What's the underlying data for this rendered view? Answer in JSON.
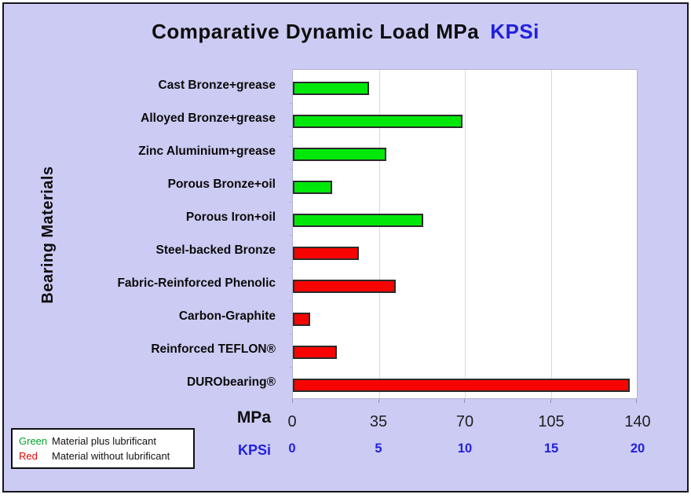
{
  "title": {
    "main": "Comparative Dynamic Load MPa",
    "secondary": "KPSi"
  },
  "ylabel": "Bearing Materials",
  "axis": {
    "primary_label": "MPa",
    "secondary_label": "KPSi"
  },
  "legend": {
    "items": [
      {
        "keyword": "Green",
        "keyword_color": "#00a32a",
        "text": "Material plus lubrificant"
      },
      {
        "keyword": "Red",
        "keyword_color": "#e80000",
        "text": "Material without lubrificant"
      }
    ]
  },
  "colors": {
    "background": "#cccbf3",
    "green_bar": "#00e80a",
    "red_bar": "#f70400",
    "bar_border": "#2b2b2b",
    "blue_accent": "#2121df",
    "gridline": "#d8d8d8"
  },
  "chart_data": {
    "type": "bar",
    "orientation": "horizontal",
    "title": "Comparative Dynamic Load MPa  KPSi",
    "xlabel": "MPa (top scale) / KPSi (bottom scale)",
    "ylabel": "Bearing Materials",
    "xlim": [
      0,
      140
    ],
    "grid": true,
    "categories": [
      "Cast Bronze+grease",
      "Alloyed Bronze+grease",
      "Zinc Aluminium+grease",
      "Porous Bronze+oil",
      "Porous Iron+oil",
      "Steel-backed Bronze",
      "Fabric-Reinforced Phenolic",
      "Carbon-Graphite",
      "Reinforced TEFLON®",
      "DURObearing®"
    ],
    "values": [
      31,
      69,
      38,
      16,
      53,
      27,
      42,
      7,
      18,
      137
    ],
    "bar_colors": [
      "green",
      "green",
      "green",
      "green",
      "green",
      "red",
      "red",
      "red",
      "red",
      "red"
    ],
    "x_ticks_mpa": [
      0,
      35,
      70,
      105,
      140
    ],
    "x_ticks_kpsi": [
      0,
      5,
      10,
      15,
      20
    ],
    "legend_position": "bottom-left"
  }
}
